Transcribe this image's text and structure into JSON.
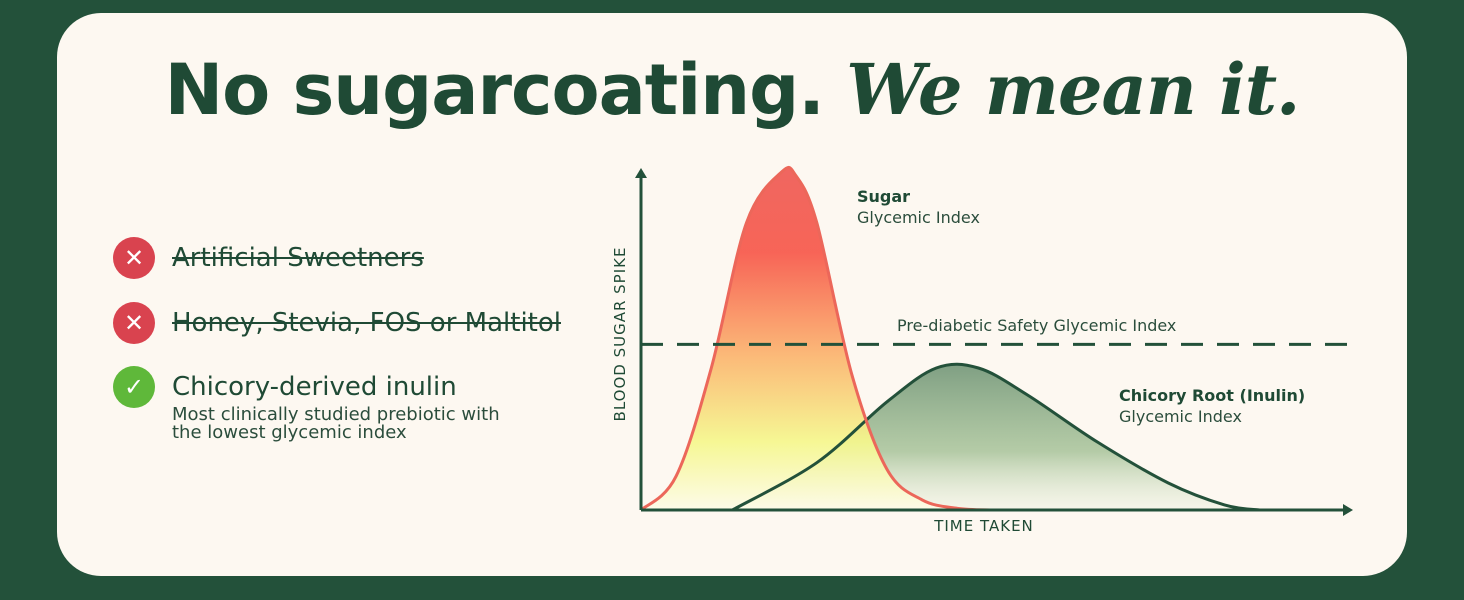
{
  "headline": {
    "plain": "No sugarcoating.",
    "italic": "We mean it."
  },
  "ingredients": [
    {
      "label": "Artificial Sweetners",
      "status": "excluded",
      "icon": "x-icon"
    },
    {
      "label": "Honey, Stevia, FOS or Maltitol",
      "status": "excluded",
      "icon": "x-icon"
    },
    {
      "label": "Chicory-derived inulin",
      "status": "included",
      "icon": "check-icon",
      "description_lines": [
        "Most clinically studied prebiotic with",
        "the lowest glycemic index"
      ]
    }
  ],
  "colors": {
    "background": "#23513a",
    "card": "#fdf8f1",
    "text": "#1f4a35",
    "sugar": "#ee5e52",
    "inulin": "#2f5e3f",
    "bad": "#d9434f",
    "good": "#5fb83a"
  },
  "chart_data": {
    "type": "area",
    "xlabel": "TIME TAKEN",
    "ylabel": "BLOOD SUGAR SPIKE",
    "xlim": [
      0,
      100
    ],
    "ylim": [
      0,
      100
    ],
    "grid": false,
    "ticks": false,
    "threshold": {
      "label": "Pre-diabetic Safety Glycemic Index",
      "value": 49
    },
    "series": [
      {
        "name": "Sugar",
        "subtitle": "Glycemic Index",
        "x": [
          0,
          5,
          10,
          15,
          20,
          22,
          25,
          30,
          35,
          40,
          45,
          50
        ],
        "y": [
          0,
          10,
          42,
          85,
          100,
          99,
          85,
          40,
          12,
          3,
          0.5,
          0
        ]
      },
      {
        "name": "Chicory Root (Inulin)",
        "subtitle": "Glycemic Index",
        "x": [
          13,
          25,
          35,
          42,
          48,
          55,
          65,
          75,
          83,
          88
        ],
        "y": [
          0,
          14,
          32,
          42,
          42,
          34,
          20,
          8,
          1.5,
          0
        ]
      }
    ]
  }
}
